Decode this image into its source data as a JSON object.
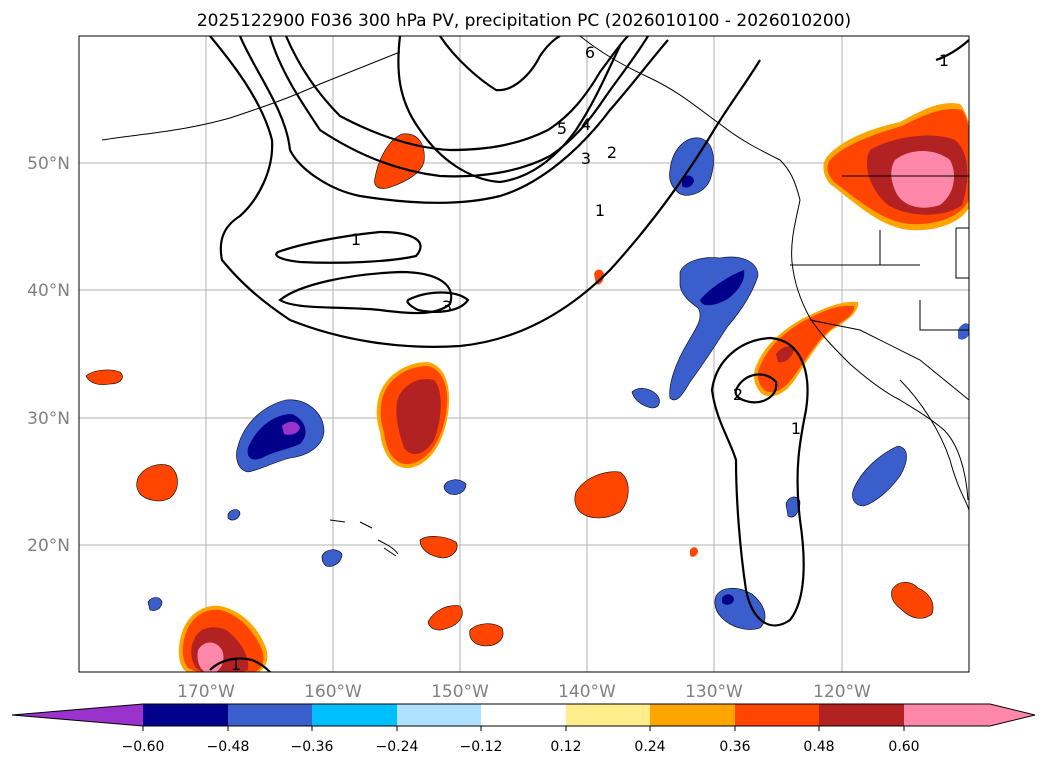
{
  "title": "2025122900 F036 300 hPa PV, precipitation PC (2026010100 - 2026010200)",
  "map": {
    "lat_labels": [
      "50°N",
      "40°N",
      "30°N",
      "20°N"
    ],
    "lon_labels": [
      "170°W",
      "160°W",
      "150°W",
      "140°W",
      "130°W",
      "120°W"
    ],
    "pv_contour_labels": [
      "1",
      "3",
      "5",
      "4",
      "6",
      "3",
      "2",
      "1",
      "1",
      "2",
      "1",
      "1"
    ]
  },
  "colorbar": {
    "ticks": [
      "−0.60",
      "−0.48",
      "−0.36",
      "−0.24",
      "−0.12",
      "0.12",
      "0.24",
      "0.36",
      "0.48",
      "0.60"
    ],
    "colors": [
      "#9933cc",
      "#00008b",
      "#3a5fcd",
      "#00bfff",
      "#b0e2ff",
      "#ffffff",
      "#ffec8b",
      "#ffa500",
      "#ff4500",
      "#b22222",
      "#ff88aa"
    ]
  }
}
